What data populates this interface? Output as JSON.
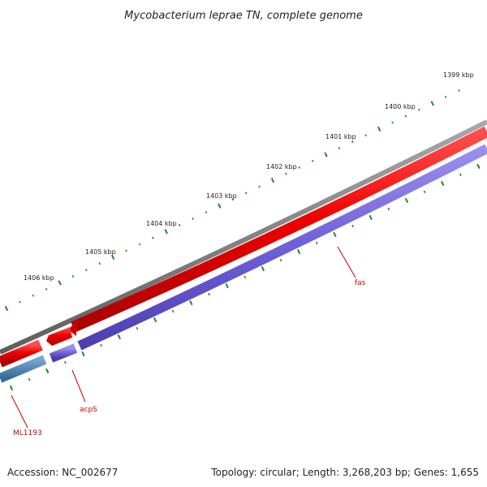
{
  "title": "Mycobacterium leprae TN, complete genome",
  "accession": "Accession: NC_002677",
  "summary": "Topology: circular; Length: 3,268,203 bp; Genes: 1,655",
  "colors": {
    "backbone": "#7a7a7a",
    "forward_gene": "#ee1111",
    "reverse_gene": "#7766dd",
    "other_gene": "#4a7fb0",
    "tick": "#1e8a1e",
    "gene_label": "#cc0000"
  },
  "scale_labels": [
    "1399 kbp",
    "1400 kbp",
    "1401 kbp",
    "1402 kbp",
    "1403 kbp",
    "1404 kbp",
    "1405 kbp",
    "1406 kbp"
  ],
  "genes": [
    {
      "name": "fas",
      "strand": "reverse"
    },
    {
      "name": "acpS",
      "strand": "reverse"
    },
    {
      "name": "ML1193",
      "strand": "reverse"
    }
  ]
}
